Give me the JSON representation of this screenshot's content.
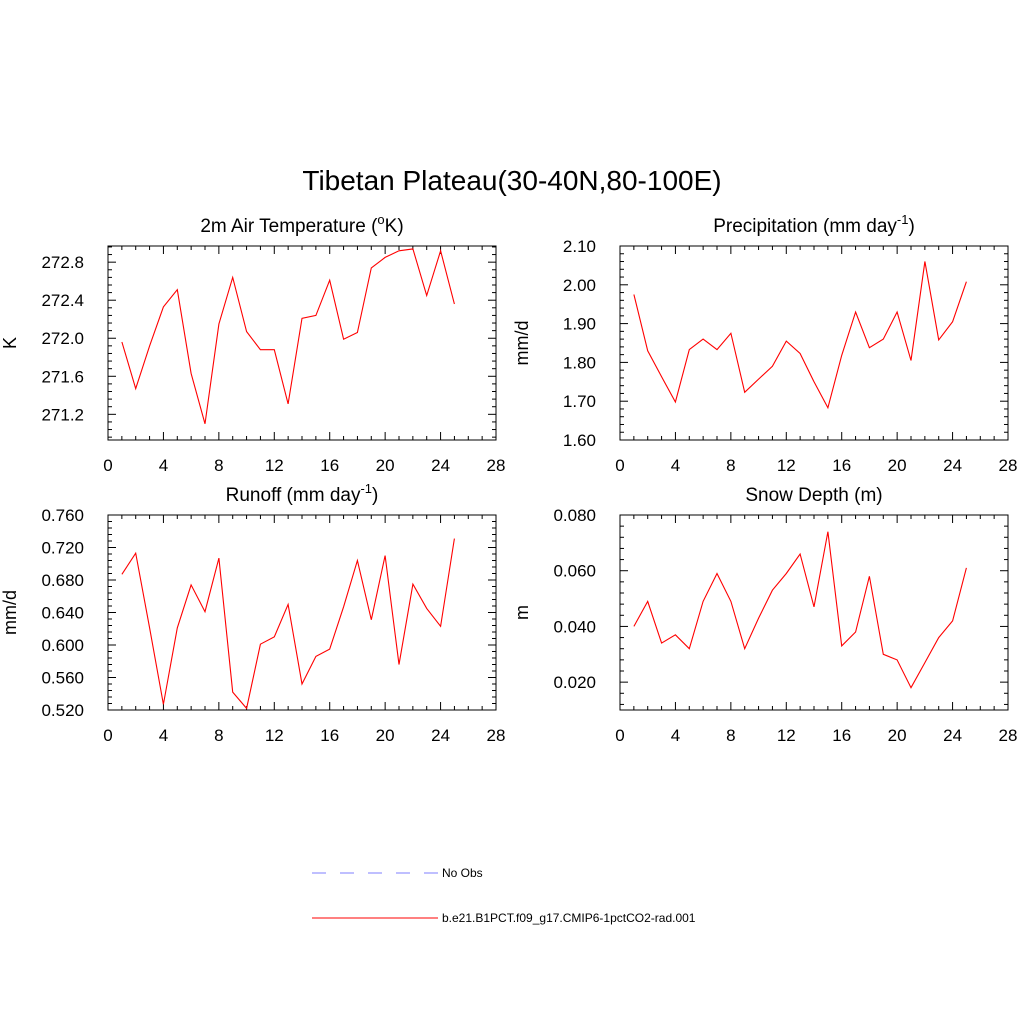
{
  "figure": {
    "title": "Tibetan Plateau(30-40N,80-100E)",
    "background": "#ffffff",
    "line_color": "#ff0000",
    "obs_color": "#9999ff"
  },
  "legend": {
    "placement": "bottom-center",
    "items": [
      {
        "label": "No Obs",
        "style": "dashed",
        "color": "#9999ff"
      },
      {
        "label": "b.e21.B1PCT.f09_g17.CMIP6-1pctCO2-rad.001",
        "style": "solid",
        "color": "#ff0000"
      }
    ]
  },
  "chart_data": [
    {
      "type": "line",
      "title": "2m Air Temperature (",
      "title_sup": "o",
      "title_after": "K)",
      "xlabel": "",
      "ylabel": "K",
      "xlim": [
        0,
        28
      ],
      "ylim": [
        270.93,
        272.97
      ],
      "xticks": [
        0,
        4,
        8,
        12,
        16,
        20,
        24,
        28
      ],
      "yticks": [
        271.2,
        271.6,
        272.0,
        272.4,
        272.8
      ],
      "ytick_labels": [
        "271.2",
        "271.6",
        "272.0",
        "272.4",
        "272.8"
      ],
      "series": [
        {
          "x": [
            1,
            2,
            3,
            4,
            5,
            6,
            7,
            8,
            9,
            10,
            11,
            12,
            13,
            14,
            15,
            16,
            17,
            18,
            19,
            20,
            21,
            22,
            23,
            24,
            25
          ],
          "values": [
            271.96,
            271.47,
            271.92,
            272.33,
            272.51,
            271.63,
            271.1,
            272.15,
            272.64,
            272.07,
            271.88,
            271.88,
            271.31,
            272.21,
            272.24,
            272.61,
            271.99,
            272.06,
            272.74,
            272.85,
            272.92,
            272.94,
            272.45,
            272.92,
            272.36
          ]
        }
      ]
    },
    {
      "type": "line",
      "title": "Precipitation (mm day",
      "title_sup": "-1",
      "title_after": ")",
      "xlabel": "",
      "ylabel": "mm/d",
      "xlim": [
        0,
        28
      ],
      "ylim": [
        1.6,
        2.1
      ],
      "xticks": [
        0,
        4,
        8,
        12,
        16,
        20,
        24,
        28
      ],
      "yticks": [
        1.6,
        1.7,
        1.8,
        1.9,
        2.0,
        2.1
      ],
      "ytick_labels": [
        "1.60",
        "1.70",
        "1.80",
        "1.90",
        "2.00",
        "2.10"
      ],
      "series": [
        {
          "x": [
            1,
            2,
            3,
            4,
            5,
            6,
            7,
            8,
            9,
            10,
            11,
            12,
            13,
            14,
            15,
            16,
            17,
            18,
            19,
            20,
            21,
            22,
            23,
            24,
            25
          ],
          "values": [
            1.975,
            1.83,
            1.763,
            1.698,
            1.833,
            1.86,
            1.833,
            1.875,
            1.723,
            1.757,
            1.79,
            1.855,
            1.823,
            1.75,
            1.683,
            1.818,
            1.93,
            1.838,
            1.86,
            1.93,
            1.805,
            2.06,
            1.858,
            1.905,
            2.008
          ]
        }
      ]
    },
    {
      "type": "line",
      "title": "Runoff (mm day",
      "title_sup": "-1",
      "title_after": ")",
      "xlabel": "",
      "ylabel": "mm/d",
      "xlim": [
        0,
        28
      ],
      "ylim": [
        0.52,
        0.76
      ],
      "xticks": [
        0,
        4,
        8,
        12,
        16,
        20,
        24,
        28
      ],
      "yticks": [
        0.52,
        0.56,
        0.6,
        0.64,
        0.68,
        0.72,
        0.76
      ],
      "ytick_labels": [
        "0.520",
        "0.560",
        "0.600",
        "0.640",
        "0.680",
        "0.720",
        "0.760"
      ],
      "series": [
        {
          "x": [
            1,
            2,
            3,
            4,
            5,
            6,
            7,
            8,
            9,
            10,
            11,
            12,
            13,
            14,
            15,
            16,
            17,
            18,
            19,
            20,
            21,
            22,
            23,
            24,
            25
          ],
          "values": [
            0.687,
            0.713,
            0.621,
            0.527,
            0.621,
            0.674,
            0.641,
            0.707,
            0.542,
            0.522,
            0.601,
            0.61,
            0.65,
            0.552,
            0.586,
            0.595,
            0.647,
            0.704,
            0.631,
            0.71,
            0.576,
            0.675,
            0.645,
            0.623,
            0.731
          ]
        }
      ]
    },
    {
      "type": "line",
      "title": "Snow Depth (m)",
      "title_sup": "",
      "title_after": "",
      "xlabel": "",
      "ylabel": "m",
      "xlim": [
        0,
        28
      ],
      "ylim": [
        0.01,
        0.08
      ],
      "xticks": [
        0,
        4,
        8,
        12,
        16,
        20,
        24,
        28
      ],
      "yticks": [
        0.02,
        0.04,
        0.06,
        0.08
      ],
      "ytick_labels": [
        "0.020",
        "0.040",
        "0.060",
        "0.080"
      ],
      "series": [
        {
          "x": [
            1,
            2,
            3,
            4,
            5,
            6,
            7,
            8,
            9,
            10,
            11,
            12,
            13,
            14,
            15,
            16,
            17,
            18,
            19,
            20,
            21,
            22,
            23,
            24,
            25
          ],
          "values": [
            0.04,
            0.049,
            0.034,
            0.037,
            0.032,
            0.049,
            0.059,
            0.049,
            0.032,
            0.043,
            0.053,
            0.059,
            0.066,
            0.047,
            0.074,
            0.033,
            0.038,
            0.058,
            0.03,
            0.028,
            0.018,
            0.027,
            0.036,
            0.042,
            0.061
          ]
        }
      ]
    }
  ]
}
